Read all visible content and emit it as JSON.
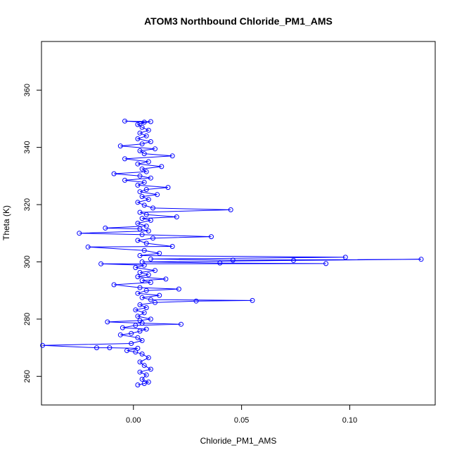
{
  "chart_data": {
    "type": "scatter",
    "title": "ATOM3 Northbound Chloride_PM1_AMS",
    "xlabel": "Chloride_PM1_AMS",
    "ylabel": "Theta (K)",
    "xlim": [
      -0.0425,
      0.1395
    ],
    "ylim": [
      250,
      377
    ],
    "x_ticks": [
      0.0,
      0.05,
      0.1
    ],
    "x_tick_labels": [
      "0.00",
      "0.05",
      "0.10"
    ],
    "y_ticks": [
      260,
      280,
      300,
      320,
      340,
      360
    ],
    "y_tick_labels": [
      "260",
      "280",
      "300",
      "320",
      "340",
      "360"
    ],
    "grid": false,
    "series": [
      {
        "color": "#0000ff",
        "marker": "open-circle",
        "connected": true,
        "points": [
          [
            0.002,
            257.0
          ],
          [
            0.005,
            257.5
          ],
          [
            0.007,
            258.0
          ],
          [
            0.004,
            259.0
          ],
          [
            0.006,
            260.5
          ],
          [
            0.003,
            261.5
          ],
          [
            0.008,
            262.5
          ],
          [
            0.005,
            263.8
          ],
          [
            0.003,
            265.0
          ],
          [
            0.007,
            266.5
          ],
          [
            0.004,
            267.8
          ],
          [
            0.001,
            268.5
          ],
          [
            -0.003,
            269.0
          ],
          [
            0.002,
            269.8
          ],
          [
            -0.011,
            270.0
          ],
          [
            -0.017,
            270.0
          ],
          [
            -0.042,
            270.8
          ],
          [
            -0.001,
            271.5
          ],
          [
            0.004,
            272.5
          ],
          [
            0.002,
            273.5
          ],
          [
            -0.006,
            274.5
          ],
          [
            -0.001,
            275.0
          ],
          [
            0.003,
            275.8
          ],
          [
            0.006,
            276.5
          ],
          [
            -0.005,
            277.0
          ],
          [
            0.001,
            277.8
          ],
          [
            0.022,
            278.2
          ],
          [
            0.004,
            278.6
          ],
          [
            -0.012,
            279.0
          ],
          [
            0.003,
            279.5
          ],
          [
            0.008,
            280.0
          ],
          [
            0.002,
            281.0
          ],
          [
            0.005,
            282.2
          ],
          [
            0.001,
            283.2
          ],
          [
            0.006,
            284.0
          ],
          [
            0.003,
            285.0
          ],
          [
            0.01,
            285.8
          ],
          [
            0.029,
            286.3
          ],
          [
            0.055,
            286.5
          ],
          [
            0.008,
            286.8
          ],
          [
            0.004,
            287.5
          ],
          [
            0.012,
            288.3
          ],
          [
            0.002,
            289.0
          ],
          [
            0.006,
            290.0
          ],
          [
            0.021,
            290.5
          ],
          [
            0.003,
            291.0
          ],
          [
            -0.009,
            292.0
          ],
          [
            0.008,
            292.8
          ],
          [
            0.004,
            293.5
          ],
          [
            0.015,
            294.0
          ],
          [
            0.002,
            294.8
          ],
          [
            0.007,
            295.5
          ],
          [
            0.003,
            296.3
          ],
          [
            0.01,
            297.0
          ],
          [
            0.001,
            298.0
          ],
          [
            0.005,
            298.8
          ],
          [
            -0.015,
            299.3
          ],
          [
            0.089,
            299.4
          ],
          [
            0.04,
            299.6
          ],
          [
            0.004,
            300.0
          ],
          [
            0.074,
            300.5
          ],
          [
            0.133,
            300.9
          ],
          [
            0.046,
            300.6
          ],
          [
            0.008,
            301.0
          ],
          [
            0.098,
            301.6
          ],
          [
            0.003,
            302.2
          ],
          [
            0.012,
            303.0
          ],
          [
            0.005,
            304.0
          ],
          [
            -0.021,
            305.2
          ],
          [
            0.018,
            305.4
          ],
          [
            0.006,
            306.5
          ],
          [
            0.002,
            307.5
          ],
          [
            0.009,
            308.3
          ],
          [
            0.036,
            308.8
          ],
          [
            0.004,
            309.5
          ],
          [
            -0.025,
            310.0
          ],
          [
            0.007,
            310.8
          ],
          [
            0.003,
            311.5
          ],
          [
            -0.013,
            311.8
          ],
          [
            0.006,
            312.5
          ],
          [
            0.002,
            313.5
          ],
          [
            0.008,
            314.5
          ],
          [
            0.004,
            315.2
          ],
          [
            0.02,
            315.7
          ],
          [
            0.006,
            316.5
          ],
          [
            0.003,
            317.3
          ],
          [
            0.045,
            318.2
          ],
          [
            0.009,
            318.8
          ],
          [
            0.005,
            319.8
          ],
          [
            0.002,
            320.8
          ],
          [
            0.007,
            321.8
          ],
          [
            0.004,
            322.8
          ],
          [
            0.011,
            323.5
          ],
          [
            0.003,
            324.5
          ],
          [
            0.006,
            325.3
          ],
          [
            0.016,
            326.0
          ],
          [
            0.002,
            326.8
          ],
          [
            0.005,
            327.8
          ],
          [
            -0.004,
            328.5
          ],
          [
            0.008,
            329.3
          ],
          [
            0.003,
            330.0
          ],
          [
            -0.009,
            330.8
          ],
          [
            0.006,
            331.5
          ],
          [
            0.004,
            332.5
          ],
          [
            0.013,
            333.3
          ],
          [
            0.002,
            334.2
          ],
          [
            0.007,
            335.0
          ],
          [
            -0.004,
            336.0
          ],
          [
            0.018,
            337.0
          ],
          [
            0.005,
            337.8
          ],
          [
            0.003,
            338.8
          ],
          [
            0.01,
            339.5
          ],
          [
            -0.006,
            340.5
          ],
          [
            0.004,
            341.2
          ],
          [
            0.008,
            342.0
          ],
          [
            0.002,
            343.0
          ],
          [
            0.006,
            344.0
          ],
          [
            0.003,
            345.0
          ],
          [
            0.007,
            346.0
          ],
          [
            0.004,
            347.0
          ],
          [
            0.002,
            348.0
          ],
          [
            0.005,
            348.8
          ],
          [
            -0.004,
            349.2
          ],
          [
            0.008,
            349.0
          ],
          [
            0.003,
            348.3
          ]
        ]
      }
    ]
  }
}
